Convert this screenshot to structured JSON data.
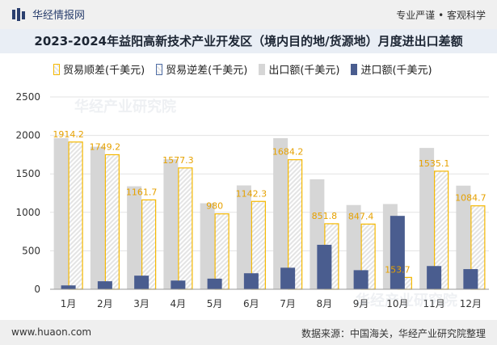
{
  "header": {
    "brand": "华经情报网",
    "slogan": "专业严谨 • 客观科学"
  },
  "watermark": {
    "text": "华经产业研究院",
    "url": "www.huaon.com"
  },
  "footer": {
    "site": "www.huaon.com",
    "source": "数据来源：中国海关，华经产业研究院整理"
  },
  "chart_data": {
    "type": "bar",
    "title": "2023-2024年益阳高新技术产业开发区（境内目的地/货源地）月度进出口差额",
    "categories": [
      "1月",
      "2月",
      "3月",
      "4月",
      "5月",
      "6月",
      "7月",
      "8月",
      "9月",
      "10月",
      "11月",
      "12月"
    ],
    "ylim": [
      0,
      2500
    ],
    "yticks": [
      0,
      500,
      1000,
      1500,
      2000,
      2500
    ],
    "legend": [
      "贸易顺差(千美元)",
      "贸易逆差(千美元)",
      "出口额(千美元)",
      "进口额(千美元)"
    ],
    "series": [
      {
        "name": "出口额(千美元)",
        "color": "#d6d6d6",
        "values": [
          1964,
          1853,
          1339,
          1690,
          1118,
          1350,
          1964,
          1430,
          1095,
          1108,
          1837,
          1347
        ]
      },
      {
        "name": "进口额(千美元)",
        "color": "#4a5d8f",
        "values": [
          50,
          104,
          177,
          113,
          138,
          208,
          280,
          578,
          248,
          954,
          302,
          262
        ]
      },
      {
        "name": "贸易顺差(千美元)",
        "color": "#f5b800",
        "values": [
          1914.2,
          1749.2,
          1161.7,
          1577.3,
          980,
          1142.3,
          1684.2,
          851.8,
          847.4,
          153.7,
          1535.1,
          1084.7
        ]
      },
      {
        "name": "贸易逆差(千美元)",
        "color": "#4f6da5",
        "values": [
          0,
          0,
          0,
          0,
          0,
          0,
          0,
          0,
          0,
          0,
          0,
          0
        ]
      }
    ],
    "labels": [
      "1914.2",
      "1749.2",
      "1161.7",
      "1577.3",
      "980",
      "1142.3",
      "1684.2",
      "851.8",
      "847.4",
      "153.7",
      "1535.1",
      "1084.7"
    ]
  }
}
